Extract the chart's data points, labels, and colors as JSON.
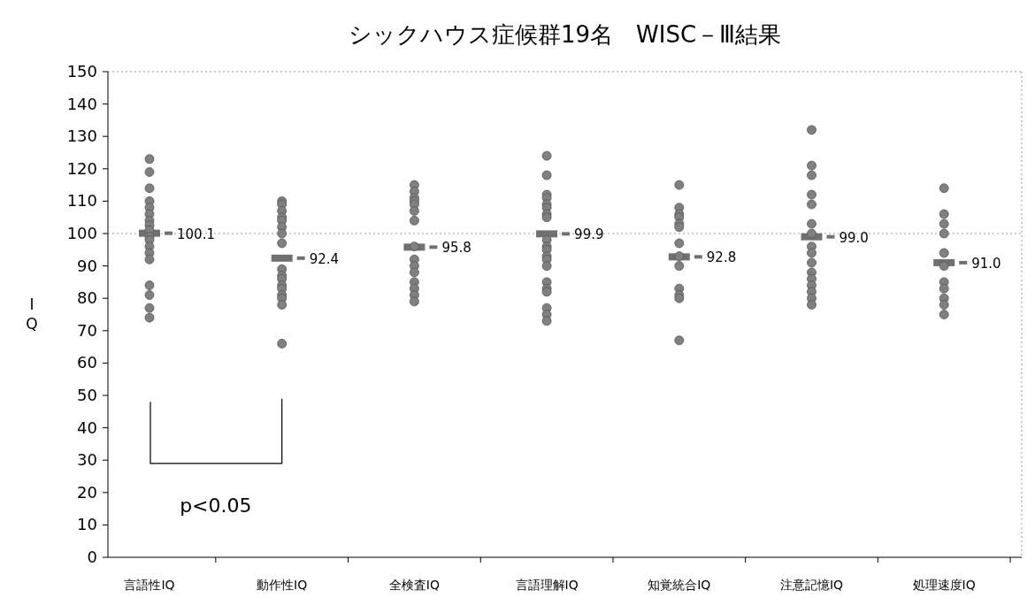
{
  "chart_data": {
    "type": "scatter",
    "title": "シックハウス症候群19名　WISC－Ⅲ結果",
    "ylabel": "IQ",
    "categories": [
      "言語性IQ",
      "動作性IQ",
      "全検査IQ",
      "言語理解IQ",
      "知覚統合IQ",
      "注意記憶IQ",
      "処理速度IQ"
    ],
    "ylim": [
      0,
      150
    ],
    "yticks": [
      0,
      10,
      20,
      30,
      40,
      50,
      60,
      70,
      80,
      90,
      100,
      110,
      120,
      130,
      140,
      150
    ],
    "ref_lines": [
      {
        "axis": "y",
        "value": 100,
        "color": "#999999",
        "line_style": "dotted"
      }
    ],
    "annotations": [
      "p<0.05"
    ],
    "series": [
      {
        "type": "scatter",
        "marker": "circle",
        "color": "#808080",
        "x": [
          "言語性IQ",
          "言語性IQ",
          "言語性IQ",
          "言語性IQ",
          "言語性IQ",
          "言語性IQ",
          "言語性IQ",
          "言語性IQ",
          "言語性IQ",
          "言語性IQ",
          "言語性IQ",
          "言語性IQ",
          "言語性IQ",
          "言語性IQ",
          "言語性IQ",
          "言語性IQ",
          "言語性IQ",
          "言語性IQ",
          "動作性IQ",
          "動作性IQ",
          "動作性IQ",
          "動作性IQ",
          "動作性IQ",
          "動作性IQ",
          "動作性IQ",
          "動作性IQ",
          "動作性IQ",
          "動作性IQ",
          "動作性IQ",
          "動作性IQ",
          "動作性IQ",
          "動作性IQ",
          "動作性IQ",
          "動作性IQ",
          "動作性IQ",
          "全検査IQ",
          "全検査IQ",
          "全検査IQ",
          "全検査IQ",
          "全検査IQ",
          "全検査IQ",
          "全検査IQ",
          "全検査IQ",
          "全検査IQ",
          "全検査IQ",
          "全検査IQ",
          "全検査IQ",
          "全検査IQ",
          "全検査IQ",
          "全検査IQ",
          "言語理解IQ",
          "言語理解IQ",
          "言語理解IQ",
          "言語理解IQ",
          "言語理解IQ",
          "言語理解IQ",
          "言語理解IQ",
          "言語理解IQ",
          "言語理解IQ",
          "言語理解IQ",
          "言語理解IQ",
          "言語理解IQ",
          "言語理解IQ",
          "言語理解IQ",
          "言語理解IQ",
          "言語理解IQ",
          "言語理解IQ",
          "言語理解IQ",
          "言語理解IQ",
          "言語理解IQ",
          "知覚統合IQ",
          "知覚統合IQ",
          "知覚統合IQ",
          "知覚統合IQ",
          "知覚統合IQ",
          "知覚統合IQ",
          "知覚統合IQ",
          "知覚統合IQ",
          "知覚統合IQ",
          "知覚統合IQ",
          "知覚統合IQ",
          "知覚統合IQ",
          "知覚統合IQ",
          "注意記憶IQ",
          "注意記憶IQ",
          "注意記憶IQ",
          "注意記憶IQ",
          "注意記憶IQ",
          "注意記憶IQ",
          "注意記憶IQ",
          "注意記憶IQ",
          "注意記憶IQ",
          "注意記憶IQ",
          "注意記憶IQ",
          "注意記憶IQ",
          "注意記憶IQ",
          "注意記憶IQ",
          "注意記憶IQ",
          "注意記憶IQ",
          "処理速度IQ",
          "処理速度IQ",
          "処理速度IQ",
          "処理速度IQ",
          "処理速度IQ",
          "処理速度IQ",
          "処理速度IQ",
          "処理速度IQ",
          "処理速度IQ",
          "処理速度IQ",
          "処理速度IQ"
        ],
        "values": [
          123,
          119,
          114,
          110,
          108,
          106,
          104,
          102.5,
          101,
          99,
          98,
          96,
          94,
          92,
          84,
          81,
          77,
          74,
          110,
          109,
          107,
          105,
          104,
          102,
          100,
          97,
          89,
          87,
          86,
          84,
          83,
          81,
          80,
          78,
          66,
          115,
          113,
          111,
          110,
          109,
          107,
          104,
          96,
          92,
          90,
          88,
          85,
          83,
          81,
          79,
          124,
          118,
          112,
          111,
          109,
          108,
          106,
          105,
          98,
          96,
          95,
          93,
          92,
          90,
          85,
          83,
          82,
          77,
          75,
          73,
          115,
          108,
          106,
          105,
          103,
          102,
          97,
          93,
          90,
          83,
          81,
          80,
          67,
          132,
          121,
          118,
          112,
          109,
          103,
          100,
          96,
          94,
          91,
          88,
          86,
          84,
          82,
          80,
          78,
          114,
          106,
          103,
          100,
          94,
          90,
          85,
          83,
          80,
          78,
          75
        ]
      },
      {
        "type": "scatter",
        "marker": "square",
        "color": "#707070",
        "x": [
          "言語性IQ",
          "動作性IQ",
          "全検査IQ",
          "言語理解IQ",
          "知覚統合IQ",
          "注意記憶IQ",
          "処理速度IQ"
        ],
        "values": [
          100.1,
          92.4,
          95.8,
          99.9,
          92.8,
          99.0,
          91.0
        ],
        "value_labels": [
          "100.1",
          "92.4",
          "95.8",
          "99.9",
          "92.8",
          "99.0",
          "91.0"
        ]
      }
    ]
  }
}
